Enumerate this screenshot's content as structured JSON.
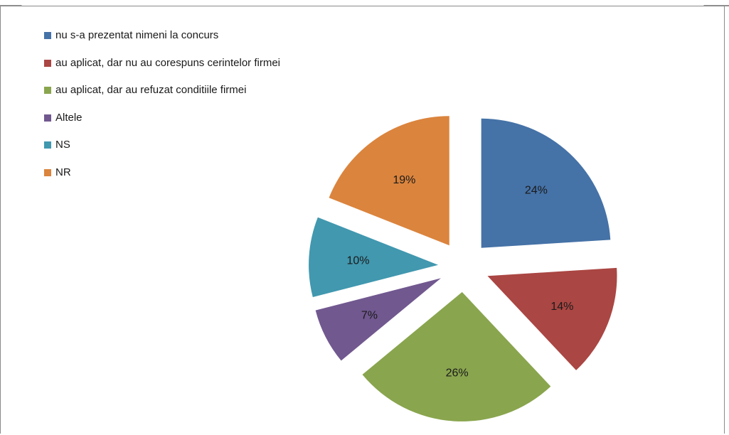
{
  "chart_data": {
    "type": "pie",
    "title": "",
    "exploded": true,
    "legend_position": "top-left",
    "slices": [
      {
        "label": "nu s-a prezentat nimeni la concurs",
        "value": 24,
        "display": "24%",
        "color": "#4572A7"
      },
      {
        "label": "au aplicat, dar nu au corespuns cerintelor firmei",
        "value": 14,
        "display": "14%",
        "color": "#AA4643"
      },
      {
        "label": "au aplicat, dar au refuzat conditiile firmei",
        "value": 26,
        "display": "26%",
        "color": "#89A54E"
      },
      {
        "label": "Altele",
        "value": 7,
        "display": "7%",
        "color": "#71588F"
      },
      {
        "label": "NS",
        "value": 10,
        "display": "10%",
        "color": "#4198AF"
      },
      {
        "label": "NR",
        "value": 19,
        "display": "19%",
        "color": "#DB843D"
      }
    ]
  }
}
